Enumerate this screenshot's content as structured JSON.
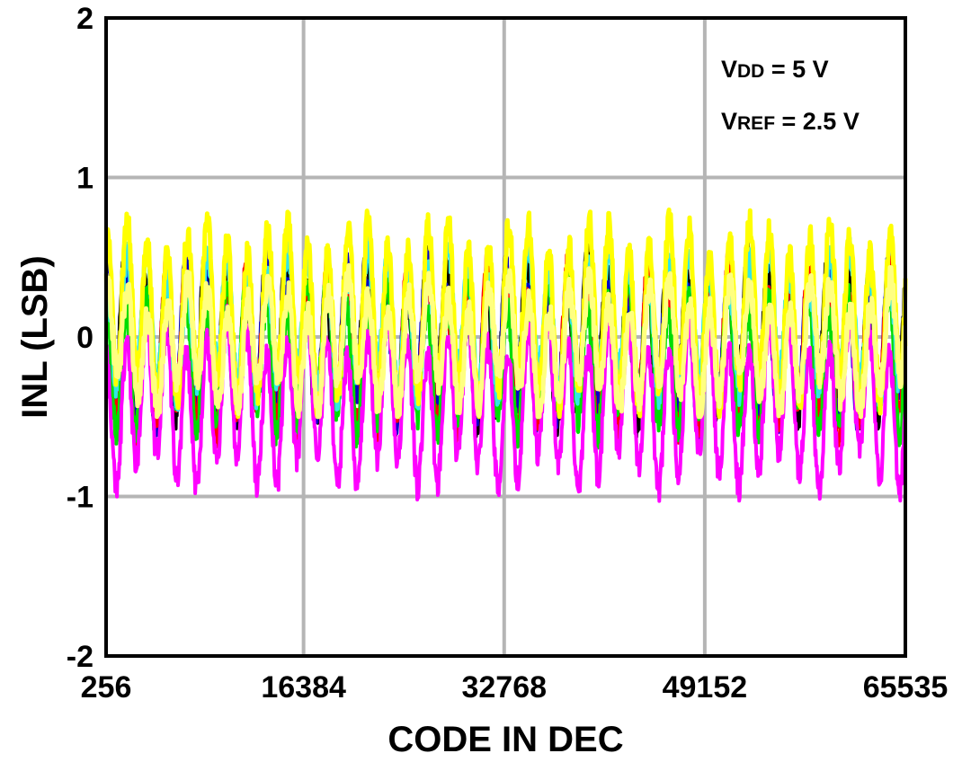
{
  "chart_data": {
    "type": "line",
    "title": "",
    "xlabel": "CODE IN DEC",
    "ylabel": "INL (LSB)",
    "xlim": [
      256,
      65535
    ],
    "ylim": [
      -2,
      2
    ],
    "xticks": [
      256,
      16384,
      32768,
      49152,
      65535
    ],
    "xtick_labels": [
      "256",
      "16384",
      "32768",
      "49152",
      "65535"
    ],
    "yticks": [
      2,
      1,
      0,
      -1,
      -2
    ],
    "ytick_labels": [
      "2",
      "1",
      "0",
      "-1",
      "-2"
    ],
    "grid": true,
    "legend": "none",
    "annotations": [
      {
        "main": "V",
        "sub": "DD",
        "rest": " = 5 V"
      },
      {
        "main": "V",
        "sub": "REF",
        "rest": " = 2.5 V"
      }
    ],
    "series_colors": [
      "#000000",
      "#0000cc",
      "#ff0000",
      "#00dd00",
      "#ff00ff",
      "#33e6e6",
      "#ffff00",
      "#ffff80"
    ],
    "series": [
      {
        "color": "#000000",
        "period": 1640,
        "amp": 0.42,
        "offset": -0.02,
        "phase": 0.9,
        "min": -0.75,
        "max": 0.88
      },
      {
        "color": "#0000cc",
        "period": 1640,
        "amp": 0.4,
        "offset": -0.05,
        "phase": 0.8,
        "min": -0.7,
        "max": 0.92
      },
      {
        "color": "#ff0000",
        "period": 1640,
        "amp": 0.42,
        "offset": -0.08,
        "phase": 0.7,
        "min": -0.98,
        "max": 0.82
      },
      {
        "color": "#00dd00",
        "period": 1640,
        "amp": 0.38,
        "offset": -0.12,
        "phase": 0.6,
        "min": -1.02,
        "max": 0.6
      },
      {
        "color": "#ff00ff",
        "period": 1640,
        "amp": 0.42,
        "offset": -0.42,
        "phase": 0.5,
        "min": -1.13,
        "max": 0.2
      },
      {
        "color": "#33e6e6",
        "period": 1640,
        "amp": 0.36,
        "offset": 0.08,
        "phase": 0.4,
        "min": -0.6,
        "max": 0.75
      },
      {
        "color": "#ffff00",
        "period": 1640,
        "amp": 0.48,
        "offset": 0.15,
        "phase": 0.3,
        "min": -0.5,
        "max": 0.98
      },
      {
        "color": "#ffff80",
        "period": 1640,
        "amp": 0.3,
        "offset": -0.05,
        "phase": 0.2,
        "min": -0.5,
        "max": 0.45
      }
    ]
  }
}
